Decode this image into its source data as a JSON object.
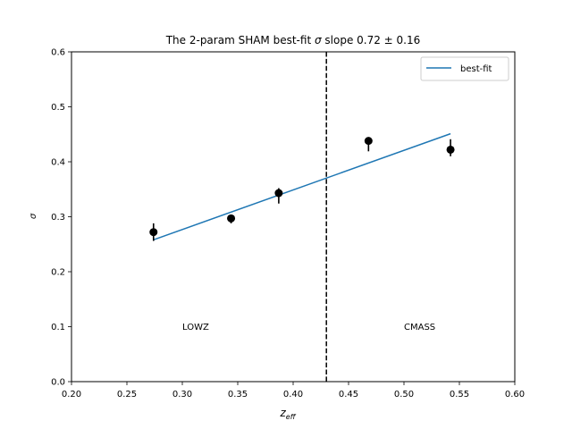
{
  "chart_data": {
    "type": "scatter",
    "title_prefix": "The 2-param SHAM best-fit ",
    "title_symbol": "σ",
    "title_suffix": " slope 0.72 ± 0.16",
    "xlabel_main": "z",
    "xlabel_sub": "eff",
    "ylabel": "σ",
    "xlim": [
      0.2,
      0.6
    ],
    "ylim": [
      0.0,
      0.6
    ],
    "xticks": [
      0.2,
      0.25,
      0.3,
      0.35,
      0.4,
      0.45,
      0.5,
      0.55,
      0.6
    ],
    "xtick_labels": [
      "0.20",
      "0.25",
      "0.30",
      "0.35",
      "0.40",
      "0.45",
      "0.50",
      "0.55",
      "0.60"
    ],
    "yticks": [
      0.0,
      0.1,
      0.2,
      0.3,
      0.4,
      0.5,
      0.6
    ],
    "ytick_labels": [
      "0.0",
      "0.1",
      "0.2",
      "0.3",
      "0.4",
      "0.5",
      "0.6"
    ],
    "grid": false,
    "legend_position": "top-right",
    "points": [
      {
        "x": 0.274,
        "y": 0.272,
        "yerr_low": 0.016,
        "yerr_high": 0.016
      },
      {
        "x": 0.344,
        "y": 0.297,
        "yerr_low": 0.009,
        "yerr_high": 0.006
      },
      {
        "x": 0.387,
        "y": 0.343,
        "yerr_low": 0.019,
        "yerr_high": 0.009
      },
      {
        "x": 0.468,
        "y": 0.438,
        "yerr_low": 0.019,
        "yerr_high": 0.006
      },
      {
        "x": 0.542,
        "y": 0.422,
        "yerr_low": 0.012,
        "yerr_high": 0.019
      }
    ],
    "fit_line": {
      "name": "best-fit",
      "x": [
        0.274,
        0.542
      ],
      "y": [
        0.258,
        0.451
      ],
      "color": "#1f77b4"
    },
    "vline": {
      "x": 0.43,
      "style": "dashed",
      "color": "#000000"
    },
    "annotations": [
      {
        "text": "LOWZ",
        "x": 0.3,
        "y": 0.1
      },
      {
        "text": "CMASS",
        "x": 0.5,
        "y": 0.1
      }
    ],
    "point_color": "#000000"
  }
}
